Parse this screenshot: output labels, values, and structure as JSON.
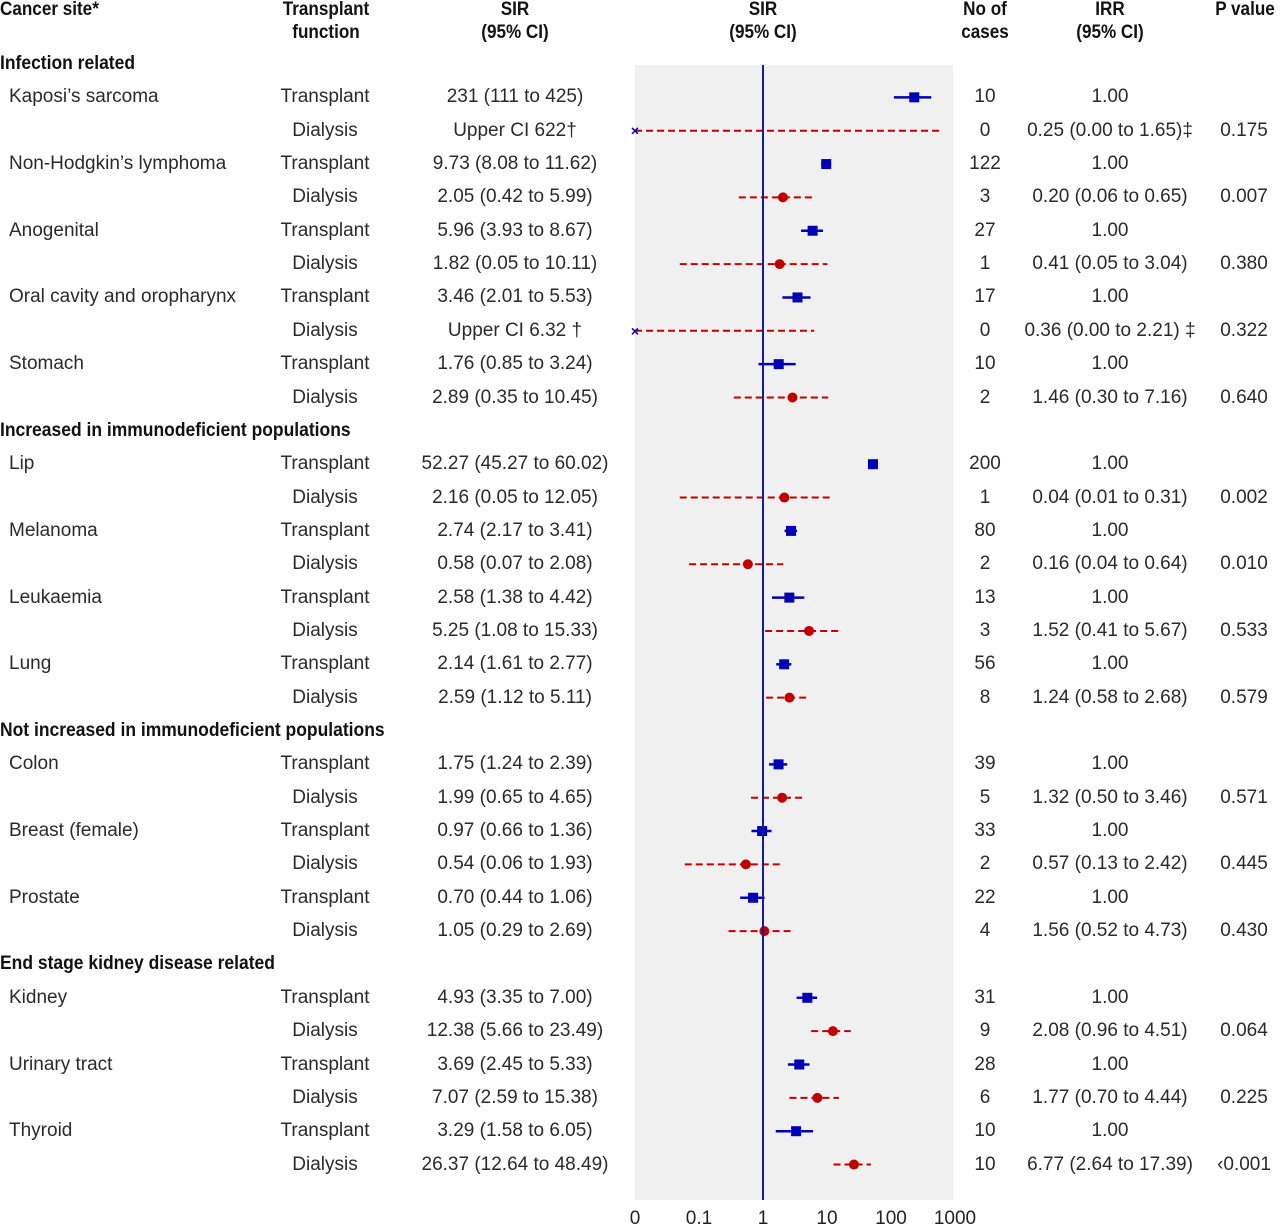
{
  "headers": {
    "cancer_site": "Cancer site*",
    "transplant_function": [
      "Transplant",
      "function"
    ],
    "sir_text": [
      "SIR",
      "(95% CI)"
    ],
    "sir_plot": [
      "SIR",
      "(95% CI)"
    ],
    "cases": [
      "No of",
      "cases"
    ],
    "irr": [
      "IRR",
      "(95% CI)"
    ],
    "p_value": "P value"
  },
  "colors": {
    "transplant": "#0000b4",
    "dialysis": "#c00000",
    "reference_line": "#1a1aa0",
    "plot_background": "#f0f0f0"
  },
  "chart_data": {
    "type": "forest",
    "title": "",
    "xlabel": "",
    "x_scale": "log10",
    "xlim": [
      0.01,
      1000
    ],
    "x_ticks": [
      0.01,
      0.1,
      1,
      10,
      100,
      1000
    ],
    "x_tick_labels": [
      "0",
      "0.1",
      "1",
      "10",
      "100",
      "1000"
    ],
    "reference_line": 1,
    "grid": false,
    "legend": "none",
    "groups": [
      {
        "name": "Infection related",
        "sites": [
          {
            "site": "Kaposi’s sarcoma",
            "rows": [
              {
                "function": "Transplant",
                "sir_text": "231 (111 to 425)",
                "sir": 231,
                "lo": 111,
                "hi": 425,
                "cases": "10",
                "irr_text": "1.00",
                "p": ""
              },
              {
                "function": "Dialysis",
                "sir_text": "Upper CI 622†",
                "sir": null,
                "lo": 0.01,
                "hi": 622,
                "cases": "0",
                "irr_text": "0.25 (0.00 to 1.65)‡",
                "p": "0.175"
              }
            ]
          },
          {
            "site": "Non-Hodgkin’s lymphoma",
            "rows": [
              {
                "function": "Transplant",
                "sir_text": "9.73 (8.08 to 11.62)",
                "sir": 9.73,
                "lo": 8.08,
                "hi": 11.62,
                "cases": "122",
                "irr_text": "1.00",
                "p": ""
              },
              {
                "function": "Dialysis",
                "sir_text": "2.05 (0.42 to 5.99)",
                "sir": 2.05,
                "lo": 0.42,
                "hi": 5.99,
                "cases": "3",
                "irr_text": "0.20 (0.06 to 0.65)",
                "p": "0.007"
              }
            ]
          },
          {
            "site": "Anogenital",
            "rows": [
              {
                "function": "Transplant",
                "sir_text": "5.96 (3.93 to 8.67)",
                "sir": 5.96,
                "lo": 3.93,
                "hi": 8.67,
                "cases": "27",
                "irr_text": "1.00",
                "p": ""
              },
              {
                "function": "Dialysis",
                "sir_text": "1.82 (0.05 to 10.11)",
                "sir": 1.82,
                "lo": 0.05,
                "hi": 10.11,
                "cases": "1",
                "irr_text": "0.41 (0.05 to 3.04)",
                "p": "0.380"
              }
            ]
          },
          {
            "site": "Oral cavity and oropharynx",
            "rows": [
              {
                "function": "Transplant",
                "sir_text": "3.46 (2.01 to 5.53)",
                "sir": 3.46,
                "lo": 2.01,
                "hi": 5.53,
                "cases": "17",
                "irr_text": "1.00",
                "p": ""
              },
              {
                "function": "Dialysis",
                "sir_text": "Upper CI 6.32 †",
                "sir": null,
                "lo": 0.01,
                "hi": 6.32,
                "cases": "0",
                "irr_text": "0.36 (0.00 to 2.21) ‡",
                "p": "0.322"
              }
            ]
          },
          {
            "site": "Stomach",
            "rows": [
              {
                "function": "Transplant",
                "sir_text": "1.76 (0.85 to 3.24)",
                "sir": 1.76,
                "lo": 0.85,
                "hi": 3.24,
                "cases": "10",
                "irr_text": "1.00",
                "p": ""
              },
              {
                "function": "Dialysis",
                "sir_text": "2.89 (0.35 to 10.45)",
                "sir": 2.89,
                "lo": 0.35,
                "hi": 10.45,
                "cases": "2",
                "irr_text": "1.46 (0.30 to 7.16)",
                "p": "0.640"
              }
            ]
          }
        ]
      },
      {
        "name": "Increased in immunodeficient populations",
        "sites": [
          {
            "site": "Lip",
            "rows": [
              {
                "function": "Transplant",
                "sir_text": "52.27 (45.27 to 60.02)",
                "sir": 52.27,
                "lo": 45.27,
                "hi": 60.02,
                "cases": "200",
                "irr_text": "1.00",
                "p": ""
              },
              {
                "function": "Dialysis",
                "sir_text": "2.16 (0.05 to 12.05)",
                "sir": 2.16,
                "lo": 0.05,
                "hi": 12.05,
                "cases": "1",
                "irr_text": "0.04 (0.01 to 0.31)",
                "p": "0.002"
              }
            ]
          },
          {
            "site": "Melanoma",
            "rows": [
              {
                "function": "Transplant",
                "sir_text": "2.74 (2.17 to 3.41)",
                "sir": 2.74,
                "lo": 2.17,
                "hi": 3.41,
                "cases": "80",
                "irr_text": "1.00",
                "p": ""
              },
              {
                "function": "Dialysis",
                "sir_text": "0.58 (0.07 to 2.08)",
                "sir": 0.58,
                "lo": 0.07,
                "hi": 2.08,
                "cases": "2",
                "irr_text": "0.16 (0.04 to 0.64)",
                "p": "0.010"
              }
            ]
          },
          {
            "site": "Leukaemia",
            "rows": [
              {
                "function": "Transplant",
                "sir_text": "2.58 (1.38 to 4.42)",
                "sir": 2.58,
                "lo": 1.38,
                "hi": 4.42,
                "cases": "13",
                "irr_text": "1.00",
                "p": ""
              },
              {
                "function": "Dialysis",
                "sir_text": "5.25 (1.08 to 15.33)",
                "sir": 5.25,
                "lo": 1.08,
                "hi": 15.33,
                "cases": "3",
                "irr_text": "1.52 (0.41 to 5.67)",
                "p": "0.533"
              }
            ]
          },
          {
            "site": "Lung",
            "rows": [
              {
                "function": "Transplant",
                "sir_text": "2.14 (1.61 to 2.77)",
                "sir": 2.14,
                "lo": 1.61,
                "hi": 2.77,
                "cases": "56",
                "irr_text": "1.00",
                "p": ""
              },
              {
                "function": "Dialysis",
                "sir_text": "2.59 (1.12 to 5.11)",
                "sir": 2.59,
                "lo": 1.12,
                "hi": 5.11,
                "cases": "8",
                "irr_text": "1.24 (0.58 to 2.68)",
                "p": "0.579"
              }
            ]
          }
        ]
      },
      {
        "name": "Not increased in immunodeficient populations",
        "sites": [
          {
            "site": "Colon",
            "rows": [
              {
                "function": "Transplant",
                "sir_text": "1.75 (1.24 to 2.39)",
                "sir": 1.75,
                "lo": 1.24,
                "hi": 2.39,
                "cases": "39",
                "irr_text": "1.00",
                "p": ""
              },
              {
                "function": "Dialysis",
                "sir_text": "1.99 (0.65 to 4.65)",
                "sir": 1.99,
                "lo": 0.65,
                "hi": 4.65,
                "cases": "5",
                "irr_text": "1.32 (0.50 to 3.46)",
                "p": "0.571"
              }
            ]
          },
          {
            "site": "Breast (female)",
            "rows": [
              {
                "function": "Transplant",
                "sir_text": "0.97 (0.66 to 1.36)",
                "sir": 0.97,
                "lo": 0.66,
                "hi": 1.36,
                "cases": "33",
                "irr_text": "1.00",
                "p": ""
              },
              {
                "function": "Dialysis",
                "sir_text": "0.54 (0.06 to 1.93)",
                "sir": 0.54,
                "lo": 0.06,
                "hi": 1.93,
                "cases": "2",
                "irr_text": "0.57 (0.13 to 2.42)",
                "p": "0.445"
              }
            ]
          },
          {
            "site": "Prostate",
            "rows": [
              {
                "function": "Transplant",
                "sir_text": "0.70 (0.44 to 1.06)",
                "sir": 0.7,
                "lo": 0.44,
                "hi": 1.06,
                "cases": "22",
                "irr_text": "1.00",
                "p": ""
              },
              {
                "function": "Dialysis",
                "sir_text": "1.05 (0.29 to 2.69)",
                "sir": 1.05,
                "lo": 0.29,
                "hi": 2.69,
                "cases": "4",
                "irr_text": "1.56 (0.52 to 4.73)",
                "p": "0.430"
              }
            ]
          }
        ]
      },
      {
        "name": "End stage kidney disease related",
        "sites": [
          {
            "site": "Kidney",
            "rows": [
              {
                "function": "Transplant",
                "sir_text": "4.93 (3.35 to 7.00)",
                "sir": 4.93,
                "lo": 3.35,
                "hi": 7.0,
                "cases": "31",
                "irr_text": "1.00",
                "p": ""
              },
              {
                "function": "Dialysis",
                "sir_text": "12.38 (5.66 to 23.49)",
                "sir": 12.38,
                "lo": 5.66,
                "hi": 23.49,
                "cases": "9",
                "irr_text": "2.08 (0.96 to 4.51)",
                "p": "0.064"
              }
            ]
          },
          {
            "site": "Urinary tract",
            "rows": [
              {
                "function": "Transplant",
                "sir_text": "3.69 (2.45 to 5.33)",
                "sir": 3.69,
                "lo": 2.45,
                "hi": 5.33,
                "cases": "28",
                "irr_text": "1.00",
                "p": ""
              },
              {
                "function": "Dialysis",
                "sir_text": "7.07 (2.59 to 15.38)",
                "sir": 7.07,
                "lo": 2.59,
                "hi": 15.38,
                "cases": "6",
                "irr_text": "1.77 (0.70 to 4.44)",
                "p": "0.225"
              }
            ]
          },
          {
            "site": "Thyroid",
            "rows": [
              {
                "function": "Transplant",
                "sir_text": "3.29 (1.58 to 6.05)",
                "sir": 3.29,
                "lo": 1.58,
                "hi": 6.05,
                "cases": "10",
                "irr_text": "1.00",
                "p": ""
              },
              {
                "function": "Dialysis",
                "sir_text": "26.37 (12.64 to 48.49)",
                "sir": 26.37,
                "lo": 12.64,
                "hi": 48.49,
                "cases": "10",
                "irr_text": "6.77 (2.64 to 17.39)",
                "p": "‹0.001"
              }
            ]
          }
        ]
      }
    ]
  }
}
